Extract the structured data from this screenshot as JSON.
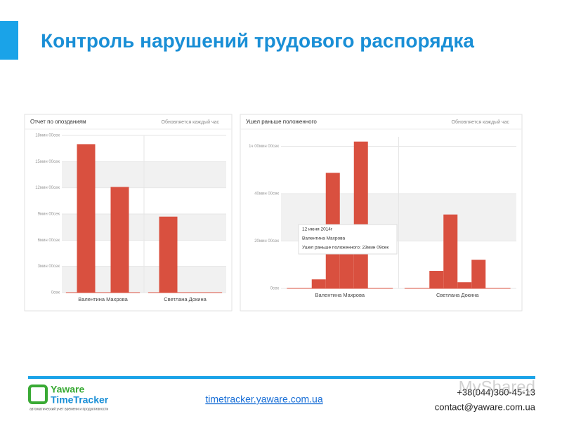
{
  "header": {
    "title": "Контроль нарушений трудового распорядка"
  },
  "chart_data": [
    {
      "type": "bar",
      "title": "Отчет по опозданиям",
      "subtitle": "Обновляется каждый час",
      "categories": [
        "Валентина Махрова",
        "Светлана Докина"
      ],
      "series": [
        {
          "color": "#d9503f",
          "values": [
            17,
            8.7
          ]
        },
        {
          "color": "#d9503f",
          "values": [
            12.1,
            null
          ]
        }
      ],
      "ylim": [
        0,
        18
      ],
      "yticks": [
        {
          "value": 0,
          "label": "0сек"
        },
        {
          "value": 3,
          "label": "3мин 00сек"
        },
        {
          "value": 6,
          "label": "6мин 00сек"
        },
        {
          "value": 9,
          "label": "9мин 00сек"
        },
        {
          "value": 12,
          "label": "12мин 00сек"
        },
        {
          "value": 15,
          "label": "15мин 00сек"
        },
        {
          "value": 18,
          "label": "18мин 00сек"
        }
      ],
      "grid": true
    },
    {
      "type": "bar",
      "title": "Ушел раньше положенного",
      "subtitle": "Обновляется каждый час",
      "categories": [
        "Валентина Махрова",
        "Светлана Докина"
      ],
      "series": [
        {
          "color": "#d9503f",
          "values": [
            3.8,
            7.4
          ]
        },
        {
          "color": "#d9503f",
          "values": [
            48.8,
            31.2
          ]
        },
        {
          "color": "#d9503f",
          "values": [
            23.15,
            2.6
          ]
        },
        {
          "color": "#d9503f",
          "values": [
            62,
            12.1
          ]
        }
      ],
      "ylim": [
        0,
        64
      ],
      "yticks": [
        {
          "value": 0,
          "label": "0сек"
        },
        {
          "value": 20,
          "label": "20мин 00сек"
        },
        {
          "value": 40,
          "label": "40мин 00сек"
        },
        {
          "value": 60,
          "label": "1ч 00мин 00сек"
        }
      ],
      "grid": true,
      "tooltip": [
        "12 июня 2014г",
        "Валентина Махрова",
        "Ушел раньше положенного: 23мин 09сек"
      ]
    }
  ],
  "footer": {
    "logo": [
      "Yaware",
      "TimeTracker"
    ],
    "tagline": "автоматический учет времени и продуктивности",
    "url": "timetracker.yaware.com.ua",
    "phone": "+38(044)360-45-13",
    "email": "contact@yaware.com.ua",
    "watermark": "MyShared"
  }
}
